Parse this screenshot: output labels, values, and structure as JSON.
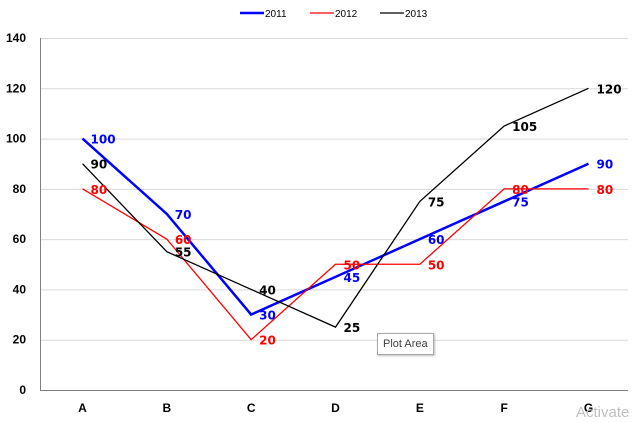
{
  "chart_data": {
    "type": "line",
    "categories": [
      "A",
      "B",
      "C",
      "D",
      "E",
      "F",
      "G"
    ],
    "series": [
      {
        "name": "2011",
        "color": "#0000ff",
        "values": [
          100,
          70,
          30,
          45,
          60,
          75,
          90
        ]
      },
      {
        "name": "2012",
        "color": "#ff0000",
        "values": [
          80,
          60,
          20,
          50,
          50,
          80,
          80
        ]
      },
      {
        "name": "2013",
        "color": "#000000",
        "values": [
          90,
          55,
          40,
          25,
          75,
          105,
          120
        ]
      }
    ],
    "ylim": [
      0,
      140
    ],
    "yticks": [
      0,
      20,
      40,
      60,
      80,
      100,
      120,
      140
    ],
    "grid": true,
    "legend": "top-center",
    "data_labels": true,
    "title": "",
    "xlabel": "",
    "ylabel": ""
  },
  "tooltip": {
    "text": "Plot Area"
  },
  "watermark": {
    "text": "Activate"
  }
}
